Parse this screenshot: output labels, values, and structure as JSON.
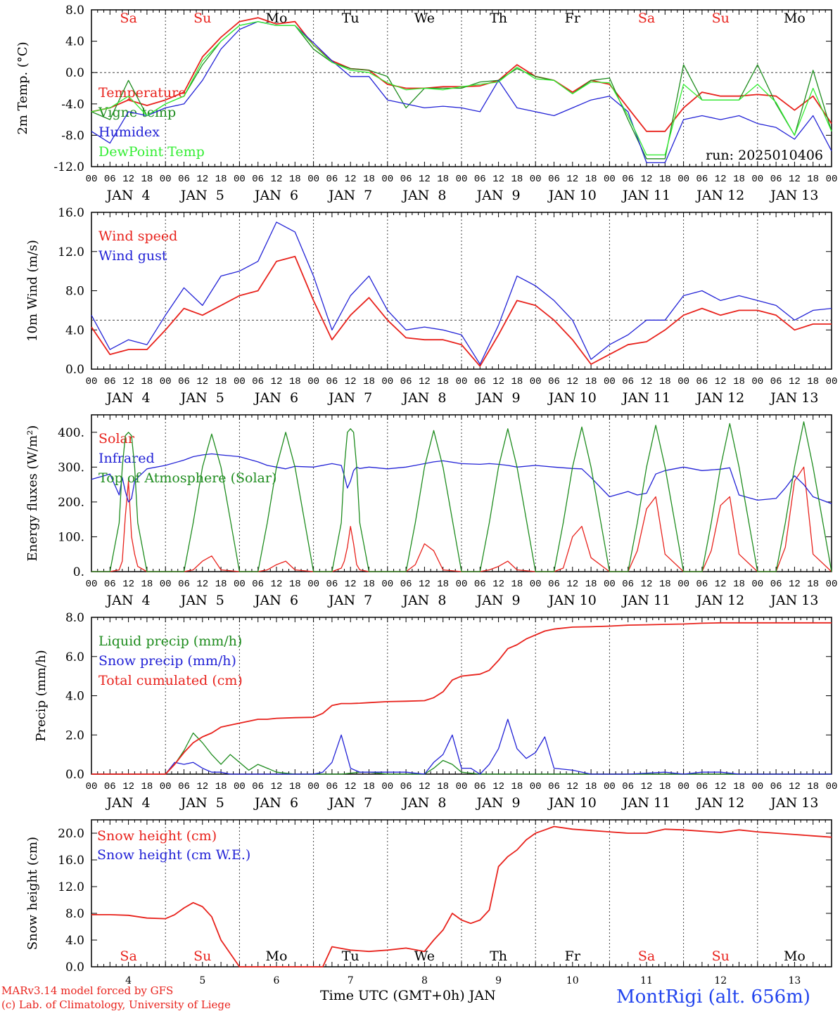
{
  "footer": {
    "credit_line1": "MARv3.14 model forced by GFS",
    "credit_line2": "(c) Lab. of Climatology, University of Liege",
    "xaxis_title": "Time UTC (GMT+0h) JAN",
    "station": "MontRigi (alt. 656m)"
  },
  "time_axis": {
    "hour_ticks": [
      "00",
      "06",
      "12",
      "18"
    ],
    "final_tick": "00",
    "day_labels": [
      "JAN  4",
      "JAN  5",
      "JAN  6",
      "JAN  7",
      "JAN  8",
      "JAN  9",
      "JAN 10",
      "JAN 11",
      "JAN 12",
      "JAN 13"
    ],
    "weekdays": [
      "Sa",
      "Su",
      "Mo",
      "Tu",
      "We",
      "Th",
      "Fr",
      "Sa",
      "Su",
      "Mo"
    ],
    "weekday_colors": [
      "#e8221c",
      "#e8221c",
      "#000000",
      "#000000",
      "#000000",
      "#000000",
      "#000000",
      "#e8221c",
      "#e8221c",
      "#000000"
    ],
    "bottom_day_numbers": [
      "4",
      "5",
      "6",
      "7",
      "8",
      "9",
      "10",
      "11",
      "12",
      "13"
    ]
  },
  "colors": {
    "red": "#e8221c",
    "green": "#1e8c1e",
    "blue": "#2222d6",
    "lightgreen": "#33ee33",
    "grid": "#444444"
  },
  "chart_data": [
    {
      "type": "line",
      "ylabel": "2m Temp. (°C)",
      "ylim": [
        -12,
        8
      ],
      "yticks": [
        "8.0",
        "4.0",
        "0.0",
        "-4.0",
        "-8.0",
        "-12.0"
      ],
      "ytick_values": [
        8,
        4,
        0,
        -4,
        -8,
        -12
      ],
      "ref_line": 0,
      "annotation": "run: 2025010406",
      "x_hours": [
        0,
        6,
        12,
        18,
        24,
        30,
        36,
        42,
        48,
        54,
        60,
        66,
        72,
        78,
        84,
        90,
        96,
        102,
        108,
        114,
        120,
        126,
        132,
        138,
        144,
        150,
        156,
        162,
        168,
        174,
        180,
        186,
        192,
        198,
        204,
        210,
        216,
        222,
        228,
        234,
        240
      ],
      "series": [
        {
          "name": "Temperature",
          "color": "#e8221c",
          "values": [
            -5,
            -4.5,
            -3.5,
            -4.2,
            -3.5,
            -2.5,
            2,
            4.5,
            6.5,
            7,
            6.2,
            6.5,
            3.5,
            1.5,
            0.5,
            0.3,
            -1.5,
            -2,
            -2,
            -1.8,
            -1.8,
            -1.7,
            -1,
            1,
            -0.5,
            -1,
            -2.5,
            -1,
            -1.5,
            -4.5,
            -7.5,
            -7.5,
            -4.5,
            -2.5,
            -3,
            -3,
            -2.8,
            -3,
            -4.8,
            -3,
            -6.5
          ]
        },
        {
          "name": "Vigne temp",
          "color": "#1e8c1e",
          "values": [
            -5,
            -6,
            -1,
            -5.5,
            -4,
            -3,
            1,
            4,
            6,
            6.5,
            6,
            6,
            3,
            1.3,
            0.5,
            0.3,
            -0.5,
            -4.5,
            -2,
            -2,
            -2,
            -1.2,
            -1,
            0.5,
            -0.5,
            -1,
            -2.7,
            -1,
            -0.7,
            -6,
            -11,
            -11,
            1,
            -3.5,
            -3.5,
            -3.5,
            1,
            -4,
            -8,
            0.3,
            -7.5
          ]
        },
        {
          "name": "Humidex",
          "color": "#2222d6",
          "values": [
            -7.5,
            -9,
            -5,
            -5.5,
            -4.5,
            -4,
            -1,
            3,
            5.5,
            6.5,
            6,
            6,
            3.8,
            1.5,
            -0.5,
            -0.5,
            -3.5,
            -4,
            -4.5,
            -4.3,
            -4.5,
            -5,
            -1,
            -4.5,
            -5,
            -5.5,
            -4.5,
            -3.5,
            -3,
            -5,
            -11.5,
            -11.5,
            -6,
            -5.5,
            -6,
            -5.5,
            -6.5,
            -7,
            -8.5,
            -5.5,
            -10
          ]
        },
        {
          "name": "DewPoint Temp",
          "color": "#33ee33",
          "values": [
            -5,
            -4.5,
            -3,
            -5.5,
            -4,
            -3,
            1.5,
            4,
            6,
            6.5,
            6,
            6,
            3.5,
            1.3,
            0.3,
            0,
            -1.3,
            -2.2,
            -2,
            -2.2,
            -1.8,
            -1.5,
            -1.2,
            0.7,
            -0.8,
            -1,
            -2.7,
            -1.2,
            -1.3,
            -5.5,
            -10.5,
            -10.5,
            -1.5,
            -3.5,
            -3.5,
            -3.5,
            -1.5,
            -3.8,
            -8,
            -2,
            -7.5
          ]
        }
      ]
    },
    {
      "type": "line",
      "ylabel": "10m Wind (m/s)",
      "ylim": [
        0,
        16
      ],
      "yticks": [
        "16.0",
        "12.0",
        "8.0",
        "4.0",
        "0.0"
      ],
      "ytick_values": [
        16,
        12,
        8,
        4,
        0
      ],
      "ref_line": 5,
      "x_hours": [
        0,
        6,
        12,
        18,
        24,
        30,
        36,
        42,
        48,
        54,
        60,
        66,
        72,
        78,
        84,
        90,
        96,
        102,
        108,
        114,
        120,
        126,
        132,
        138,
        144,
        150,
        156,
        162,
        168,
        174,
        180,
        186,
        192,
        198,
        204,
        210,
        216,
        222,
        228,
        234,
        240
      ],
      "series": [
        {
          "name": "Wind speed",
          "color": "#e8221c",
          "values": [
            4.3,
            1.5,
            2,
            2,
            4,
            6.2,
            5.5,
            6.5,
            7.5,
            8,
            11,
            11.5,
            7,
            3,
            5.5,
            7.3,
            5,
            3.2,
            3,
            3,
            2.5,
            0.3,
            3.5,
            7,
            6.5,
            5,
            3,
            0.5,
            1.5,
            2.5,
            2.8,
            4,
            5.5,
            6.2,
            5.5,
            6,
            6,
            5.5,
            4,
            4.6,
            4.6
          ]
        },
        {
          "name": "Wind gust",
          "color": "#2222d6",
          "values": [
            5.5,
            2,
            3,
            2.5,
            5.5,
            8.3,
            6.5,
            9.5,
            10,
            11,
            15,
            14,
            9.5,
            4,
            7.5,
            9.5,
            6,
            4,
            4.3,
            4,
            3.5,
            0.5,
            4.5,
            9.5,
            8.5,
            7,
            5,
            1,
            2.5,
            3.5,
            5,
            5,
            7.5,
            8,
            7,
            7.5,
            7,
            6.5,
            5,
            6,
            6.2
          ]
        }
      ]
    },
    {
      "type": "line",
      "ylabel": "Energy fluxes (W/m²)",
      "ylim": [
        0,
        450
      ],
      "yticks": [
        "400.",
        "300.",
        "200.",
        "100.",
        "0."
      ],
      "ytick_values": [
        400,
        300,
        200,
        100,
        0
      ],
      "x_hours": [
        0,
        6,
        9,
        10,
        11,
        12,
        13,
        14,
        15,
        18,
        24,
        30,
        33,
        36,
        39,
        42,
        48,
        54,
        57,
        60,
        63,
        66,
        72,
        78,
        81,
        82,
        83,
        84,
        85,
        86,
        87,
        90,
        96,
        102,
        105,
        108,
        111,
        114,
        120,
        126,
        129,
        132,
        135,
        138,
        144,
        150,
        153,
        156,
        159,
        162,
        168,
        174,
        177,
        180,
        183,
        186,
        192,
        198,
        201,
        204,
        207,
        210,
        216,
        222,
        225,
        228,
        231,
        234,
        240
      ],
      "series": [
        {
          "name": "Solar",
          "color": "#e8221c",
          "values": [
            0,
            0,
            5,
            30,
            160,
            260,
            100,
            50,
            15,
            0,
            0,
            0,
            5,
            30,
            45,
            5,
            0,
            0,
            5,
            20,
            30,
            5,
            0,
            0,
            10,
            30,
            70,
            130,
            80,
            20,
            5,
            0,
            0,
            0,
            20,
            80,
            60,
            5,
            0,
            0,
            5,
            15,
            30,
            5,
            0,
            0,
            10,
            100,
            130,
            40,
            0,
            0,
            60,
            180,
            215,
            50,
            0,
            0,
            60,
            190,
            215,
            50,
            0,
            0,
            70,
            260,
            300,
            50,
            0
          ]
        },
        {
          "name": "Infrared",
          "color": "#2222d6",
          "values": [
            265,
            280,
            220,
            270,
            230,
            200,
            210,
            260,
            270,
            295,
            305,
            320,
            330,
            335,
            338,
            335,
            330,
            315,
            305,
            300,
            295,
            302,
            300,
            310,
            305,
            275,
            240,
            260,
            290,
            300,
            296,
            300,
            295,
            300,
            305,
            310,
            315,
            318,
            310,
            308,
            310,
            308,
            305,
            300,
            305,
            300,
            298,
            296,
            295,
            270,
            215,
            230,
            220,
            225,
            280,
            290,
            300,
            290,
            292,
            294,
            298,
            220,
            205,
            210,
            240,
            275,
            250,
            215,
            195
          ]
        },
        {
          "name": "Top of Atmosphere (Solar)",
          "color": "#1e8c1e",
          "values": [
            0,
            0,
            140,
            300,
            390,
            400,
            390,
            300,
            140,
            0,
            0,
            0,
            140,
            300,
            395,
            300,
            0,
            0,
            140,
            300,
            400,
            300,
            0,
            0,
            140,
            300,
            400,
            410,
            400,
            300,
            140,
            0,
            0,
            0,
            140,
            300,
            405,
            300,
            0,
            0,
            140,
            300,
            410,
            300,
            0,
            0,
            140,
            300,
            415,
            300,
            0,
            0,
            140,
            300,
            420,
            300,
            0,
            0,
            140,
            300,
            425,
            300,
            0,
            0,
            140,
            300,
            430,
            300,
            0
          ]
        }
      ]
    },
    {
      "type": "line",
      "ylabel": "Precip (mm/h)",
      "ylim": [
        0,
        8
      ],
      "yticks": [
        "8.0",
        "6.0",
        "4.0",
        "2.0",
        "0.0"
      ],
      "ytick_values": [
        8,
        6,
        4,
        2,
        0
      ],
      "x_hours": [
        0,
        6,
        12,
        18,
        24,
        27,
        30,
        33,
        36,
        39,
        42,
        45,
        48,
        51,
        54,
        57,
        60,
        66,
        72,
        75,
        78,
        81,
        84,
        87,
        90,
        96,
        102,
        108,
        111,
        114,
        117,
        120,
        123,
        126,
        129,
        132,
        135,
        138,
        141,
        144,
        147,
        150,
        156,
        162,
        168,
        174,
        180,
        186,
        192,
        198,
        204,
        210,
        216,
        222,
        228,
        234,
        240
      ],
      "series": [
        {
          "name": "Liquid precip (mm/h)",
          "color": "#1e8c1e",
          "values": [
            0,
            0,
            0,
            0,
            0,
            0.5,
            1.2,
            2.1,
            1.6,
            1,
            0.5,
            1,
            0.6,
            0.2,
            0.5,
            0.3,
            0.1,
            0,
            0,
            0,
            0,
            0,
            0.05,
            0.1,
            0.1,
            0,
            0,
            0,
            0.3,
            0.7,
            0.5,
            0.1,
            0.05,
            0,
            0,
            0,
            0,
            0,
            0,
            0,
            0,
            0,
            0,
            0,
            0,
            0,
            0,
            0,
            0,
            0,
            0,
            0,
            0,
            0,
            0,
            0,
            0
          ]
        },
        {
          "name": "Snow precip (mm/h)",
          "color": "#2222d6",
          "values": [
            0,
            0,
            0,
            0,
            0,
            0.6,
            0.5,
            0.6,
            0.3,
            0.1,
            0.1,
            0,
            0,
            0,
            0,
            0,
            0,
            0,
            0,
            0.1,
            0.6,
            2,
            0.3,
            0.1,
            0.1,
            0.1,
            0.1,
            0,
            0.6,
            1,
            2,
            0.3,
            0.3,
            0,
            0.5,
            1.3,
            2.8,
            1.3,
            0.8,
            1.1,
            1.9,
            0.3,
            0.2,
            0,
            0,
            0,
            0.05,
            0.1,
            0,
            0.1,
            0.1,
            0,
            0,
            0,
            0,
            0,
            0
          ]
        },
        {
          "name": "Total cumulated (cm)",
          "color": "#e8221c",
          "values": [
            0,
            0,
            0,
            0,
            0,
            0.5,
            1.1,
            1.6,
            1.9,
            2.1,
            2.4,
            2.5,
            2.6,
            2.7,
            2.8,
            2.8,
            2.85,
            2.88,
            2.9,
            3.1,
            3.5,
            3.6,
            3.6,
            3.62,
            3.65,
            3.7,
            3.72,
            3.75,
            3.9,
            4.2,
            4.8,
            5,
            5.05,
            5.1,
            5.3,
            5.8,
            6.4,
            6.6,
            6.9,
            7.1,
            7.3,
            7.4,
            7.5,
            7.52,
            7.55,
            7.6,
            7.62,
            7.64,
            7.66,
            7.7,
            7.72,
            7.72,
            7.72,
            7.72,
            7.72,
            7.72,
            7.72
          ]
        }
      ]
    },
    {
      "type": "line",
      "ylabel": "Snow height (cm)",
      "ylim": [
        0,
        22
      ],
      "yticks": [
        "20.0",
        "16.0",
        "12.0",
        "8.0",
        "4.0",
        "0.0"
      ],
      "ytick_values": [
        20,
        16,
        12,
        8,
        4,
        0
      ],
      "x_hours": [
        0,
        6,
        12,
        18,
        24,
        27,
        30,
        33,
        36,
        39,
        42,
        48,
        54,
        60,
        66,
        72,
        75,
        78,
        84,
        90,
        96,
        102,
        108,
        111,
        114,
        117,
        120,
        123,
        126,
        129,
        132,
        135,
        138,
        141,
        144,
        147,
        150,
        156,
        162,
        168,
        174,
        180,
        186,
        192,
        198,
        204,
        210,
        216,
        222,
        228,
        234,
        240
      ],
      "series": [
        {
          "name": "Snow height (cm)",
          "color": "#e8221c",
          "values": [
            7.8,
            7.8,
            7.7,
            7.3,
            7.2,
            7.8,
            8.8,
            9.6,
            9,
            7.5,
            4,
            0,
            0,
            0,
            0,
            0,
            0,
            3,
            2.5,
            2.3,
            2.5,
            2.8,
            2.3,
            4,
            5.5,
            8,
            7,
            6.5,
            7,
            8.5,
            15,
            16.5,
            17.5,
            19,
            20,
            20.5,
            21,
            20.6,
            20.4,
            20.2,
            20,
            20,
            20.6,
            20.5,
            20.3,
            20.1,
            20.5,
            20.2,
            20,
            19.8,
            19.6,
            19.4
          ]
        },
        {
          "name": "Snow height (cm W.E.)",
          "color": "#2222d6",
          "values": []
        }
      ]
    }
  ]
}
